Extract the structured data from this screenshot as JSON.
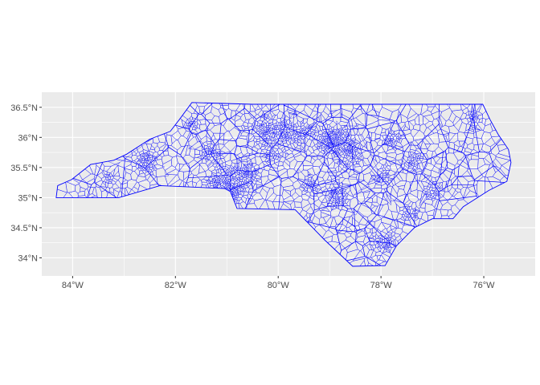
{
  "chart_data": {
    "type": "map",
    "title": "",
    "xlabel": "",
    "ylabel": "",
    "panel_background": "#ebebeb",
    "grid_color": "#ffffff",
    "line_color": "#0000ff",
    "grid": true,
    "xlim": [
      -84.6,
      -75.0
    ],
    "ylim": [
      33.7,
      36.75
    ],
    "x_ticks": [
      {
        "value": -84,
        "label": "84°W"
      },
      {
        "value": -82,
        "label": "82°W"
      },
      {
        "value": -80,
        "label": "80°W"
      },
      {
        "value": -78,
        "label": "78°W"
      },
      {
        "value": -76,
        "label": "76°W"
      }
    ],
    "y_ticks": [
      {
        "value": 34.0,
        "label": "34°N"
      },
      {
        "value": 34.5,
        "label": "34.5°N"
      },
      {
        "value": 35.0,
        "label": "35°N"
      },
      {
        "value": 35.5,
        "label": "35.5°N"
      },
      {
        "value": 36.0,
        "label": "36°N"
      },
      {
        "value": 36.5,
        "label": "36.5°N"
      }
    ],
    "outline": [
      [
        -84.32,
        35.0
      ],
      [
        -84.29,
        35.2
      ],
      [
        -84.02,
        35.3
      ],
      [
        -83.65,
        35.55
      ],
      [
        -83.2,
        35.62
      ],
      [
        -82.95,
        35.72
      ],
      [
        -82.5,
        35.97
      ],
      [
        -82.1,
        36.1
      ],
      [
        -81.92,
        36.3
      ],
      [
        -81.68,
        36.58
      ],
      [
        -80.5,
        36.55
      ],
      [
        -79.3,
        36.55
      ],
      [
        -78.0,
        36.55
      ],
      [
        -76.9,
        36.55
      ],
      [
        -76.02,
        36.55
      ],
      [
        -75.88,
        36.3
      ],
      [
        -75.72,
        36.05
      ],
      [
        -75.52,
        35.8
      ],
      [
        -75.47,
        35.58
      ],
      [
        -75.55,
        35.27
      ],
      [
        -75.9,
        35.12
      ],
      [
        -76.4,
        34.85
      ],
      [
        -76.6,
        34.65
      ],
      [
        -77.0,
        34.65
      ],
      [
        -77.35,
        34.5
      ],
      [
        -77.7,
        34.2
      ],
      [
        -77.92,
        33.87
      ],
      [
        -78.0,
        33.87
      ],
      [
        -78.55,
        33.86
      ],
      [
        -79.1,
        34.3
      ],
      [
        -79.67,
        34.8
      ],
      [
        -80.8,
        34.82
      ],
      [
        -80.93,
        35.1
      ],
      [
        -81.04,
        35.15
      ],
      [
        -82.3,
        35.2
      ],
      [
        -83.1,
        35.0
      ],
      [
        -84.32,
        35.0
      ]
    ],
    "hubs": [
      {
        "x": -80.85,
        "y": 35.23,
        "w": 2.5
      },
      {
        "x": -78.65,
        "y": 35.8,
        "w": 2.2
      },
      {
        "x": -78.9,
        "y": 35.98,
        "w": 1.8
      },
      {
        "x": -79.8,
        "y": 36.08,
        "w": 1.7
      },
      {
        "x": -80.25,
        "y": 36.1,
        "w": 1.7
      },
      {
        "x": -82.55,
        "y": 35.6,
        "w": 1.4
      },
      {
        "x": -78.9,
        "y": 35.05,
        "w": 1.4
      },
      {
        "x": -77.9,
        "y": 34.22,
        "w": 1.3
      },
      {
        "x": -77.38,
        "y": 35.6,
        "w": 0.9
      },
      {
        "x": -81.3,
        "y": 35.75,
        "w": 0.9
      },
      {
        "x": -80.55,
        "y": 35.4,
        "w": 0.8
      },
      {
        "x": -81.2,
        "y": 35.26,
        "w": 0.8
      },
      {
        "x": -77.0,
        "y": 35.1,
        "w": 0.7
      },
      {
        "x": -77.95,
        "y": 35.38,
        "w": 0.7
      },
      {
        "x": -77.8,
        "y": 35.95,
        "w": 0.7
      },
      {
        "x": -79.06,
        "y": 35.92,
        "w": 0.8
      },
      {
        "x": -79.45,
        "y": 36.1,
        "w": 0.7
      },
      {
        "x": -80.12,
        "y": 35.7,
        "w": 0.6
      },
      {
        "x": -81.65,
        "y": 36.2,
        "w": 0.5
      },
      {
        "x": -79.4,
        "y": 35.2,
        "w": 0.6
      },
      {
        "x": -76.2,
        "y": 36.3,
        "w": 0.5
      },
      {
        "x": -77.4,
        "y": 34.75,
        "w": 0.6
      },
      {
        "x": -83.3,
        "y": 35.3,
        "w": 0.4
      },
      {
        "x": -80.95,
        "y": 35.1,
        "w": 0.9
      }
    ]
  }
}
